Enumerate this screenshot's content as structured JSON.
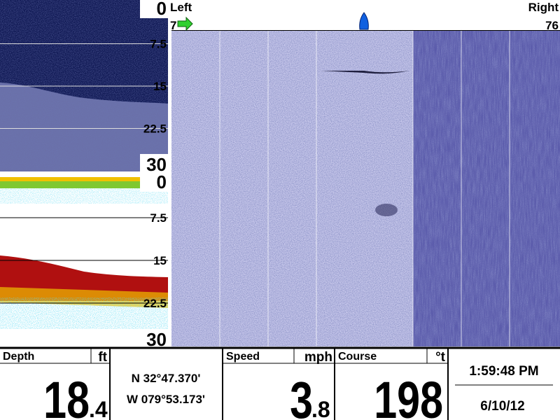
{
  "down_imaging": {
    "scale_labels": [
      "0",
      "7.5",
      "15",
      "22.5",
      "30"
    ]
  },
  "sonar": {
    "scale_labels": [
      "0",
      "7.5",
      "15",
      "22.5",
      "30"
    ]
  },
  "side_imaging": {
    "left_label": "Left",
    "right_label": "Right",
    "left_range": "7",
    "right_range": "76"
  },
  "info_bar": {
    "depth": {
      "label": "Depth",
      "unit": "ft",
      "whole": "18",
      "fraction": ".4"
    },
    "position": {
      "latitude": "N 32°47.370'",
      "longitude": "W 079°53.173'"
    },
    "speed": {
      "label": "Speed",
      "unit": "mph",
      "whole": "3",
      "fraction": ".8"
    },
    "course": {
      "label": "Course",
      "unit": "°t",
      "value": "198"
    },
    "time": "1:59:48 PM",
    "date": "6/10/12"
  }
}
